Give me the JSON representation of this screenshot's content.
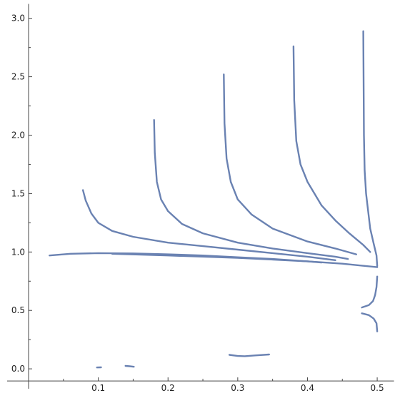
{
  "chart_data": {
    "type": "line",
    "title": "",
    "xlabel": "",
    "ylabel": "",
    "xlim": [
      0.0,
      0.52
    ],
    "ylim": [
      -0.1,
      3.05
    ],
    "x_ticks": [
      {
        "value": 0.1,
        "label": "0.1"
      },
      {
        "value": 0.2,
        "label": "0.2"
      },
      {
        "value": 0.3,
        "label": "0.3"
      },
      {
        "value": 0.4,
        "label": "0.4"
      },
      {
        "value": 0.5,
        "label": "0.5"
      }
    ],
    "y_ticks": [
      {
        "value": 0.0,
        "label": "0.0"
      },
      {
        "value": 0.5,
        "label": "0.5"
      },
      {
        "value": 1.0,
        "label": "1.0"
      },
      {
        "value": 1.5,
        "label": "1.5"
      },
      {
        "value": 2.0,
        "label": "2.0"
      },
      {
        "value": 2.5,
        "label": "2.5"
      },
      {
        "value": 3.0,
        "label": "3.0"
      }
    ],
    "line_color": "#6a82b2",
    "grid": false,
    "series": [
      {
        "points": [
          [
            0.03,
            0.97
          ],
          [
            0.06,
            0.985
          ],
          [
            0.1,
            0.99
          ],
          [
            0.15,
            0.988
          ],
          [
            0.2,
            0.98
          ],
          [
            0.25,
            0.97
          ],
          [
            0.3,
            0.955
          ],
          [
            0.35,
            0.94
          ],
          [
            0.4,
            0.92
          ],
          [
            0.42,
            0.91
          ]
        ]
      },
      {
        "points": [
          [
            0.12,
            0.985
          ],
          [
            0.2,
            0.97
          ],
          [
            0.3,
            0.95
          ],
          [
            0.4,
            0.92
          ],
          [
            0.45,
            0.9
          ],
          [
            0.5,
            0.87
          ]
        ]
      },
      {
        "points": [
          [
            0.078,
            1.53
          ],
          [
            0.082,
            1.44
          ],
          [
            0.09,
            1.33
          ],
          [
            0.1,
            1.25
          ],
          [
            0.12,
            1.18
          ],
          [
            0.15,
            1.13
          ],
          [
            0.2,
            1.08
          ],
          [
            0.25,
            1.05
          ],
          [
            0.3,
            1.02
          ],
          [
            0.35,
            0.99
          ],
          [
            0.4,
            0.96
          ],
          [
            0.44,
            0.93
          ]
        ]
      },
      {
        "points": [
          [
            0.18,
            2.13
          ],
          [
            0.181,
            1.85
          ],
          [
            0.184,
            1.6
          ],
          [
            0.19,
            1.45
          ],
          [
            0.2,
            1.35
          ],
          [
            0.22,
            1.24
          ],
          [
            0.25,
            1.16
          ],
          [
            0.3,
            1.08
          ],
          [
            0.35,
            1.03
          ],
          [
            0.4,
            0.99
          ],
          [
            0.44,
            0.96
          ],
          [
            0.458,
            0.94
          ]
        ]
      },
      {
        "points": [
          [
            0.28,
            2.52
          ],
          [
            0.281,
            2.1
          ],
          [
            0.284,
            1.8
          ],
          [
            0.29,
            1.6
          ],
          [
            0.3,
            1.45
          ],
          [
            0.32,
            1.32
          ],
          [
            0.35,
            1.2
          ],
          [
            0.4,
            1.09
          ],
          [
            0.44,
            1.03
          ],
          [
            0.47,
            0.98
          ]
        ]
      },
      {
        "points": [
          [
            0.38,
            2.76
          ],
          [
            0.381,
            2.3
          ],
          [
            0.384,
            1.95
          ],
          [
            0.39,
            1.75
          ],
          [
            0.4,
            1.6
          ],
          [
            0.42,
            1.4
          ],
          [
            0.44,
            1.27
          ],
          [
            0.46,
            1.16
          ],
          [
            0.48,
            1.06
          ],
          [
            0.49,
            1.0
          ]
        ]
      },
      {
        "points": [
          [
            0.48,
            2.89
          ],
          [
            0.4805,
            2.5
          ],
          [
            0.481,
            2.0
          ],
          [
            0.482,
            1.7
          ],
          [
            0.484,
            1.5
          ],
          [
            0.487,
            1.35
          ],
          [
            0.49,
            1.2
          ],
          [
            0.495,
            1.07
          ],
          [
            0.499,
            0.97
          ],
          [
            0.5,
            0.88
          ]
        ]
      },
      {
        "points": [
          [
            0.5,
            0.79
          ],
          [
            0.499,
            0.7
          ],
          [
            0.497,
            0.63
          ],
          [
            0.494,
            0.58
          ],
          [
            0.488,
            0.545
          ],
          [
            0.478,
            0.525
          ]
        ]
      },
      {
        "points": [
          [
            0.478,
            0.475
          ],
          [
            0.488,
            0.46
          ],
          [
            0.495,
            0.43
          ],
          [
            0.499,
            0.39
          ],
          [
            0.5,
            0.32
          ]
        ]
      },
      {
        "points": [
          [
            0.098,
            0.012
          ],
          [
            0.104,
            0.013
          ]
        ]
      },
      {
        "points": [
          [
            0.139,
            0.025
          ],
          [
            0.145,
            0.022
          ],
          [
            0.151,
            0.018
          ]
        ]
      },
      {
        "points": [
          [
            0.288,
            0.12
          ],
          [
            0.3,
            0.11
          ],
          [
            0.31,
            0.108
          ],
          [
            0.325,
            0.115
          ],
          [
            0.345,
            0.123
          ]
        ]
      }
    ]
  }
}
